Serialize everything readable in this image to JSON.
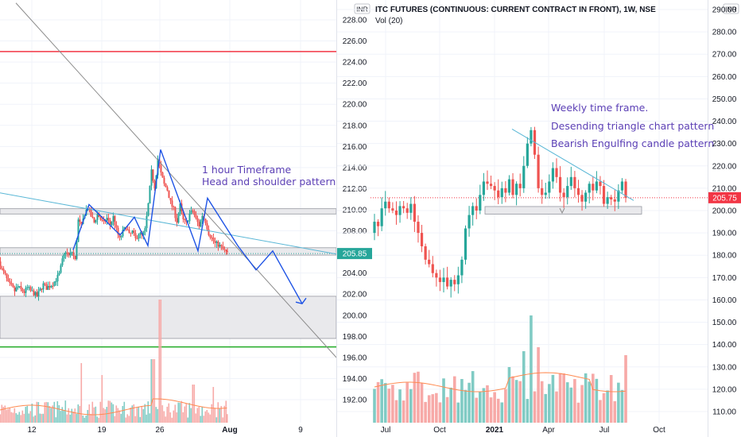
{
  "colors": {
    "up": "#26a69a",
    "down": "#ef5350",
    "vol_up": "#80cbc4",
    "vol_down": "#f7a9a7",
    "pattern_blue": "#1e53e5",
    "trend_light": "#5ab7d6",
    "trend_gray": "#8c8c8c",
    "resistance_red": "#f23645",
    "support_green": "#22ab25",
    "zone_fill": "#e9e9ec",
    "zone_stroke": "#9598a1",
    "annotation": "#5b3fb5",
    "price_tag": "#26a69a",
    "price_tag_red": "#f23645"
  },
  "chart_data": [
    {
      "type": "line",
      "title": "",
      "timeframe_note": "1 hour Timeframe",
      "pattern_note": "Head and shoulder pattern",
      "currency": "INR",
      "ylim": [
        190.4,
        229.6
      ],
      "y_ticks": [
        "192.00",
        "194.00",
        "196.00",
        "198.00",
        "200.00",
        "202.00",
        "204.00",
        "206.00",
        "208.00",
        "210.00",
        "212.00",
        "214.00",
        "216.00",
        "218.00",
        "220.00",
        "222.00",
        "224.00",
        "226.00",
        "228.00"
      ],
      "x_ticks": [
        "12",
        "19",
        "26",
        "Aug",
        "9"
      ],
      "last_price": "205.85",
      "levels": {
        "resistance": 225.0,
        "support": 197.0
      },
      "zones": [
        {
          "from": 209.6,
          "to": 210.1
        },
        {
          "from": 205.7,
          "to": 206.4
        },
        {
          "from": 197.8,
          "to": 201.8
        }
      ],
      "price_path": [
        [
          0,
          205.1
        ],
        [
          4,
          204.3
        ],
        [
          8,
          203.8
        ],
        [
          12,
          203.0
        ],
        [
          16,
          202.7
        ],
        [
          20,
          202.3
        ],
        [
          24,
          202.7
        ],
        [
          28,
          202.4
        ],
        [
          32,
          202.2
        ],
        [
          36,
          202.6
        ],
        [
          40,
          202.3
        ],
        [
          44,
          202.1
        ],
        [
          48,
          201.8
        ],
        [
          52,
          202.4
        ],
        [
          56,
          202.9
        ],
        [
          60,
          202.6
        ],
        [
          64,
          202.8
        ],
        [
          68,
          203.0
        ],
        [
          72,
          203.4
        ],
        [
          76,
          203.9
        ],
        [
          80,
          205.2
        ],
        [
          84,
          206.1
        ],
        [
          88,
          205.6
        ],
        [
          92,
          206.0
        ],
        [
          96,
          205.2
        ],
        [
          100,
          209.0
        ],
        [
          104,
          208.4
        ],
        [
          108,
          209.7
        ],
        [
          112,
          210.2
        ],
        [
          116,
          209.4
        ],
        [
          120,
          208.8
        ],
        [
          124,
          209.6
        ],
        [
          128,
          209.1
        ],
        [
          132,
          208.7
        ],
        [
          136,
          209.2
        ],
        [
          140,
          208.6
        ],
        [
          144,
          209.3
        ],
        [
          148,
          208.1
        ],
        [
          152,
          207.2
        ],
        [
          156,
          207.9
        ],
        [
          160,
          208.4
        ],
        [
          164,
          207.6
        ],
        [
          168,
          207.9
        ],
        [
          172,
          207.2
        ],
        [
          176,
          207.8
        ],
        [
          180,
          207.5
        ],
        [
          184,
          208.1
        ],
        [
          188,
          210.5
        ],
        [
          192,
          213.6
        ],
        [
          196,
          212.2
        ],
        [
          200,
          214.8
        ],
        [
          204,
          213.4
        ],
        [
          208,
          212.4
        ],
        [
          212,
          211.9
        ],
        [
          216,
          210.7
        ],
        [
          220,
          210.0
        ],
        [
          224,
          208.9
        ],
        [
          228,
          210.4
        ],
        [
          232,
          209.0
        ],
        [
          236,
          208.7
        ],
        [
          240,
          209.6
        ],
        [
          244,
          209.9
        ],
        [
          248,
          209.1
        ],
        [
          252,
          208.5
        ],
        [
          256,
          209.5
        ],
        [
          260,
          208.9
        ],
        [
          264,
          207.8
        ],
        [
          268,
          207.3
        ],
        [
          272,
          206.8
        ],
        [
          276,
          206.7
        ],
        [
          280,
          206.4
        ],
        [
          284,
          206.1
        ],
        [
          287,
          205.85
        ]
      ],
      "head_shoulders_path": [
        [
          92,
          206.2
        ],
        [
          112,
          210.5
        ],
        [
          151,
          207.6
        ],
        [
          169,
          209.3
        ],
        [
          186,
          206.6
        ],
        [
          202,
          215.7
        ],
        [
          249,
          206.1
        ],
        [
          261,
          211.1
        ],
        [
          299,
          206.6
        ],
        [
          322,
          204.3
        ],
        [
          343,
          206.1
        ],
        [
          380,
          201.1
        ]
      ],
      "trendlines": [
        {
          "from": [
            0,
            211.6
          ],
          "to": [
            423,
            205.8
          ],
          "style": "light"
        },
        {
          "from": [
            20,
            229.6
          ],
          "to": [
            423,
            196.0
          ],
          "style": "gray"
        }
      ],
      "volume_baseline": 0.5
    },
    {
      "type": "line",
      "title": "ITC FUTURES (CONTINUOUS: CURRENT CONTRACT IN FRONT), 1W, NSE",
      "subtitle": "Vol (20)",
      "currency": "INR",
      "ylim": [
        106,
        292
      ],
      "y_ticks": [
        "110.00",
        "120.00",
        "130.00",
        "140.00",
        "150.00",
        "160.00",
        "170.00",
        "180.00",
        "190.00",
        "200.00",
        "210.00",
        "220.00",
        "230.00",
        "240.00",
        "250.00",
        "260.00",
        "270.00",
        "280.00",
        "290.00"
      ],
      "x_ticks": [
        "Jul",
        "Oct",
        "2021",
        "Apr",
        "Jul",
        "Oct"
      ],
      "last_price": "205.75",
      "annotations": [
        "Weekly time frame.",
        "Desending triangle chart pattern",
        "Bearish Engulfing candle pattern"
      ],
      "zone": {
        "from": 198.4,
        "to": 201.8
      },
      "triangle_line": {
        "from": [
          0.0,
          236.5
        ],
        "to": [
          1.0,
          205.0
        ]
      },
      "weekly_closes": [
        195,
        193,
        201,
        204,
        201,
        200,
        198,
        202,
        201,
        199,
        203,
        195,
        190,
        184,
        178,
        176,
        172,
        170,
        168,
        170,
        166,
        169,
        167,
        171,
        178,
        192,
        198,
        202,
        200,
        207,
        213,
        212,
        211,
        209,
        206,
        210,
        208,
        214,
        207,
        212,
        210,
        220,
        230,
        236,
        225,
        210,
        207,
        208,
        213,
        219,
        215,
        208,
        206,
        211,
        215,
        210,
        207,
        204,
        208,
        212,
        209,
        213,
        211,
        203,
        206,
        205,
        204,
        209,
        213,
        205.75
      ]
    }
  ]
}
